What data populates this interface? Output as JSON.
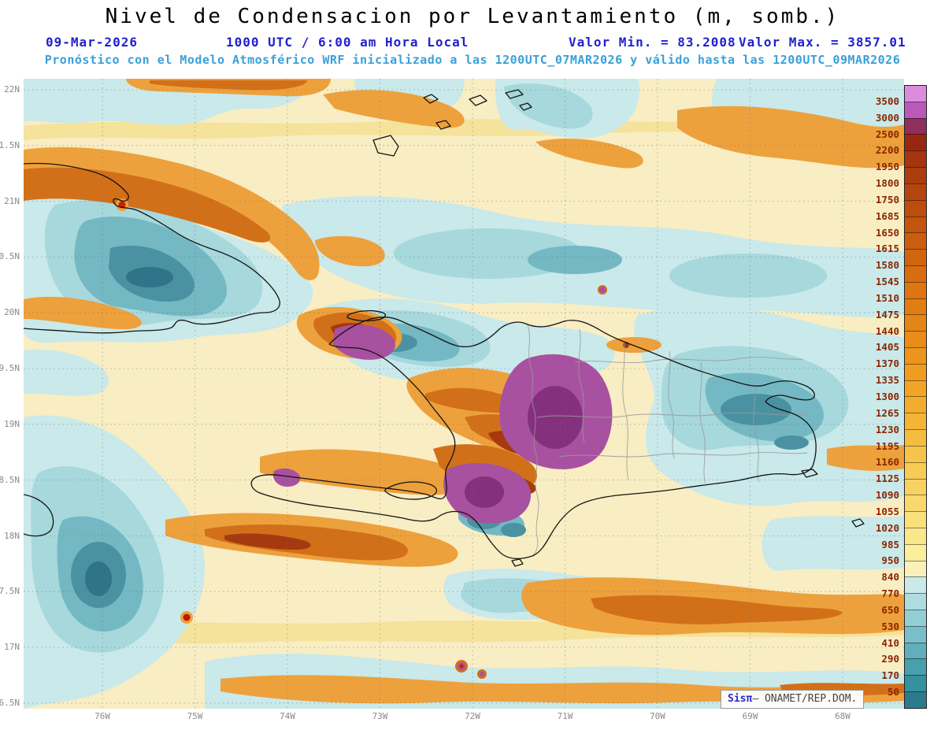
{
  "header": {
    "title": "Nivel de Condensacion por Levantamiento (m, somb.)",
    "date": "09-Mar-2026",
    "time_label": "1000 UTC / 6:00 am Hora Local",
    "valor_min": "Valor Min. = 83.2008",
    "valor_max": "Valor Max. = 3857.01",
    "model_line": "Pronóstico con el Modelo Atmosférico WRF inicializado a las 1200UTC_07MAR2026 y válido hasta las  1200UTC_09MAR2026"
  },
  "map": {
    "lat_ticks": [
      "22N",
      "1.5N",
      "21N",
      "0.5N",
      "20N",
      "9.5N",
      "19N",
      "8.5N",
      "18N",
      "7.5N",
      "17N",
      "6.5N"
    ],
    "lon_ticks": [
      "76W",
      "75W",
      "74W",
      "73W",
      "72W",
      "71W",
      "70W",
      "69W",
      "68W"
    ]
  },
  "colorbar": {
    "levels": [
      3500,
      3000,
      2500,
      2200,
      1950,
      1800,
      1750,
      1685,
      1650,
      1615,
      1580,
      1545,
      1510,
      1475,
      1440,
      1405,
      1370,
      1335,
      1300,
      1265,
      1230,
      1195,
      1160,
      1125,
      1090,
      1055,
      1020,
      985,
      950,
      840,
      770,
      650,
      530,
      410,
      290,
      170,
      50
    ],
    "colors_top_to_bottom": [
      "#dd8cdd",
      "#bb59bb",
      "#8e2f5e",
      "#97280f",
      "#a53410",
      "#ad3d0e",
      "#b5450e",
      "#bd4d0e",
      "#c4550e",
      "#cb5d0f",
      "#d1650f",
      "#d76d10",
      "#dc7512",
      "#e17d13",
      "#e58515",
      "#e98d18",
      "#ec951c",
      "#ef9d21",
      "#f1a527",
      "#f3ad2e",
      "#f4b537",
      "#f5bd40",
      "#f6c44a",
      "#f7cb55",
      "#f8d261",
      "#f9d96e",
      "#fae07c",
      "#fbe78b",
      "#fcee9b",
      "#f9f0bb",
      "#c9e9ea",
      "#aedcdf",
      "#93ced5",
      "#79bfc9",
      "#60afbc",
      "#489fae",
      "#35909f",
      "#2a7b8d"
    ]
  },
  "watermark": {
    "brand": "Sisπ",
    "org": "– ONAMET/REP.DOM."
  },
  "chart_data": {
    "type": "heatmap",
    "title": "Nivel de Condensacion por Levantamiento (m, somb.)",
    "units": "m",
    "valid_date": "09-Mar-2026",
    "valid_time": "1000 UTC / 6:00 am Hora Local",
    "value_min": 83.2008,
    "value_max": 3857.01,
    "model_info": "WRF inicializado 1200UTC_07MAR2026, válido hasta 1200UTC_09MAR2026",
    "x_axis_ticks": [
      "76W",
      "75W",
      "74W",
      "73W",
      "72W",
      "71W",
      "70W",
      "69W",
      "68W"
    ],
    "y_axis_ticks": [
      "22N",
      "1.5N",
      "21N",
      "0.5N",
      "20N",
      "9.5N",
      "19N",
      "8.5N",
      "18N",
      "7.5N",
      "17N",
      "6.5N"
    ],
    "contour_levels": [
      50,
      170,
      290,
      410,
      530,
      650,
      770,
      840,
      950,
      985,
      1020,
      1055,
      1090,
      1125,
      1160,
      1195,
      1230,
      1265,
      1300,
      1335,
      1370,
      1405,
      1440,
      1475,
      1510,
      1545,
      1580,
      1615,
      1650,
      1685,
      1750,
      1800,
      1950,
      2200,
      2500,
      3000,
      3500
    ],
    "legend_position": "right"
  }
}
